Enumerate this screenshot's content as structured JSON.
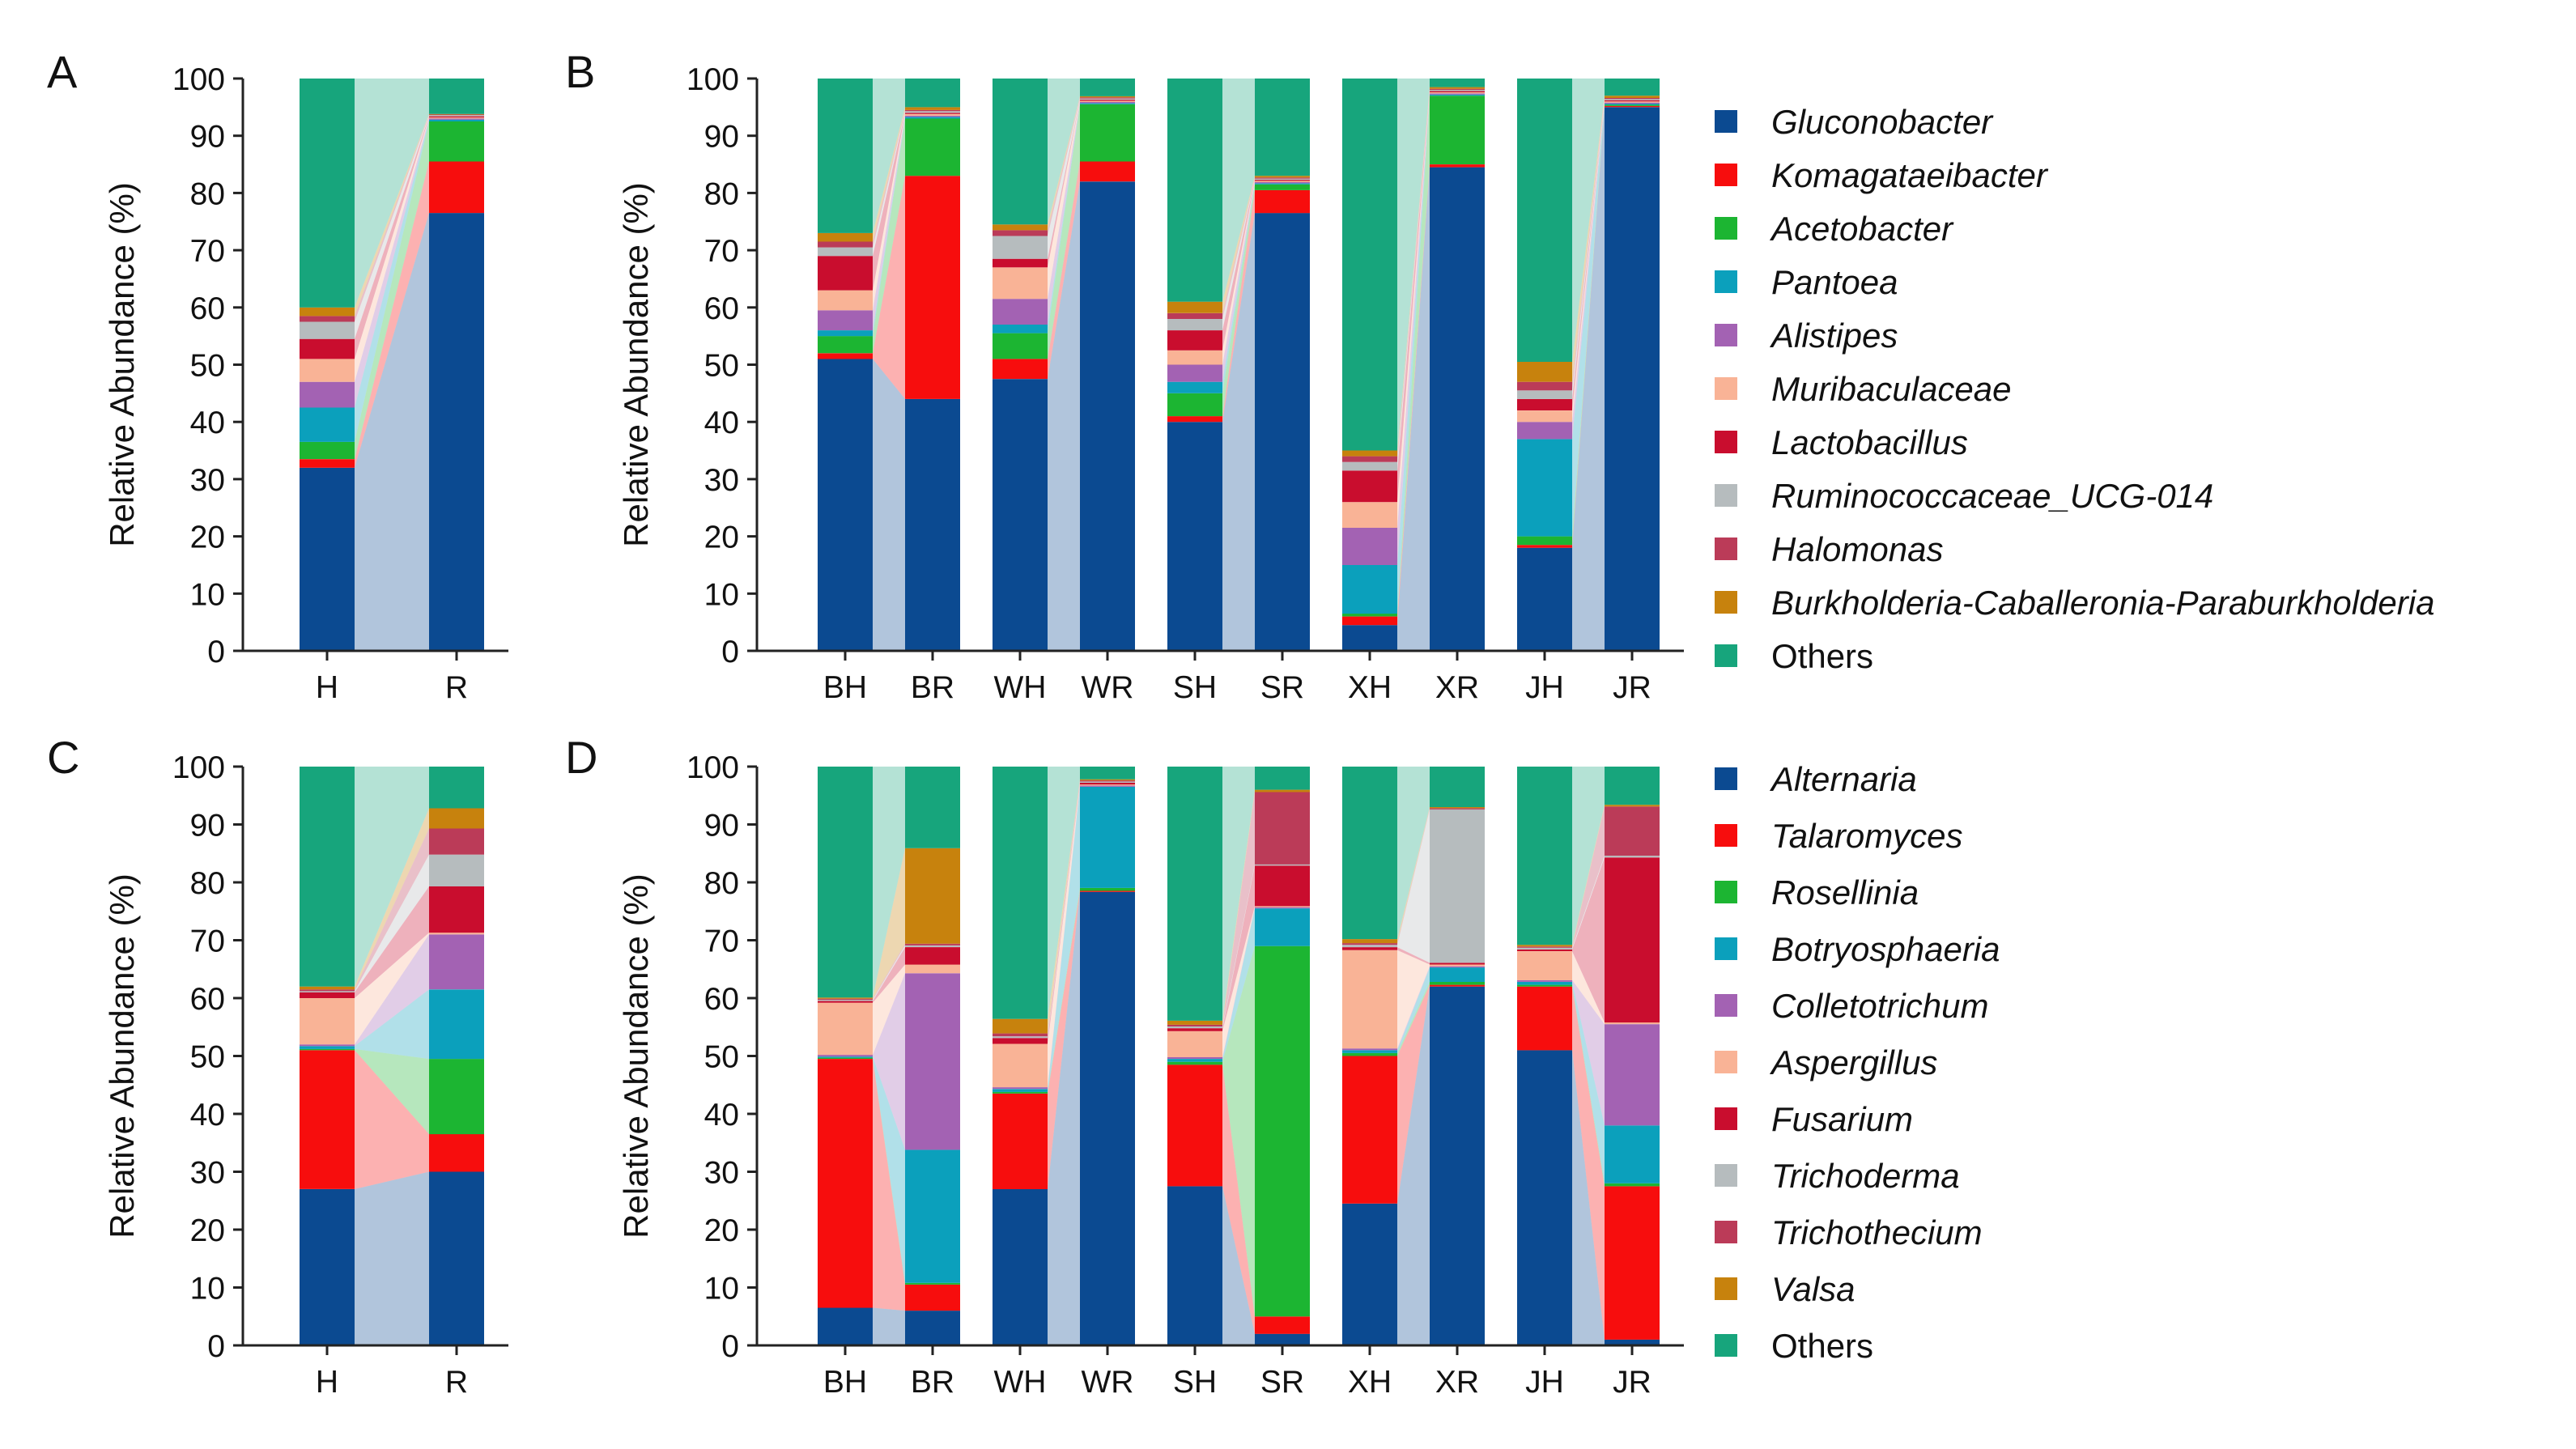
{
  "colors": {
    "navy": "#0b4a91",
    "red": "#f70d0d",
    "green": "#1cb532",
    "teal": "#0ba0bc",
    "purple": "#a362b3",
    "peach": "#f9b396",
    "crimson": "#c90d2e",
    "gray": "#b6bcbe",
    "rose": "#bb3b58",
    "ochre": "#c7820d",
    "sea": "#17a57c"
  },
  "axis_label": "Relative Abundance (%)",
  "y_ticks": [
    "0",
    "10",
    "20",
    "30",
    "40",
    "50",
    "60",
    "70",
    "80",
    "90",
    "100"
  ],
  "legends": [
    {
      "entries": [
        {
          "label": "Gluconobacter",
          "color": "#0b4a91",
          "italic": true
        },
        {
          "label": "Komagataeibacter",
          "color": "#f70d0d",
          "italic": true
        },
        {
          "label": "Acetobacter",
          "color": "#1cb532",
          "italic": true
        },
        {
          "label": "Pantoea",
          "color": "#0ba0bc",
          "italic": true
        },
        {
          "label": "Alistipes",
          "color": "#a362b3",
          "italic": true
        },
        {
          "label": "Muribaculaceae",
          "color": "#f9b396",
          "italic": true
        },
        {
          "label": "Lactobacillus",
          "color": "#c90d2e",
          "italic": true
        },
        {
          "label": "Ruminococcaceae_UCG-014",
          "color": "#b6bcbe",
          "italic": true
        },
        {
          "label": "Halomonas",
          "color": "#bb3b58",
          "italic": true
        },
        {
          "label": "Burkholderia-Caballeronia-Paraburkholderia",
          "color": "#c7820d",
          "italic": true
        },
        {
          "label": "Others",
          "color": "#17a57c",
          "italic": false
        }
      ]
    },
    {
      "entries": [
        {
          "label": "Alternaria",
          "color": "#0b4a91",
          "italic": true
        },
        {
          "label": "Talaromyces",
          "color": "#f70d0d",
          "italic": true
        },
        {
          "label": "Rosellinia",
          "color": "#1cb532",
          "italic": true
        },
        {
          "label": "Botryosphaeria",
          "color": "#0ba0bc",
          "italic": true
        },
        {
          "label": "Colletotrichum",
          "color": "#a362b3",
          "italic": true
        },
        {
          "label": "Aspergillus",
          "color": "#f9b396",
          "italic": true
        },
        {
          "label": "Fusarium",
          "color": "#c90d2e",
          "italic": true
        },
        {
          "label": "Trichoderma",
          "color": "#b6bcbe",
          "italic": true
        },
        {
          "label": "Trichothecium",
          "color": "#bb3b58",
          "italic": true
        },
        {
          "label": "Valsa",
          "color": "#c7820d",
          "italic": true
        },
        {
          "label": "Others",
          "color": "#17a57c",
          "italic": false
        }
      ]
    }
  ],
  "chart_data": [
    {
      "panel": "A",
      "type": "stacked-bar",
      "ylabel": "Relative Abundance (%)",
      "ylim": [
        0,
        100
      ],
      "categories": [
        "H",
        "R"
      ],
      "series": [
        "Gluconobacter",
        "Komagataeibacter",
        "Acetobacter",
        "Pantoea",
        "Alistipes",
        "Muribaculaceae",
        "Lactobacillus",
        "Ruminococcaceae_UCG-014",
        "Halomonas",
        "Burkholderia-Caballeronia-Paraburkholderia",
        "Others"
      ],
      "values": [
        [
          32,
          1.5,
          3,
          6,
          4.5,
          4,
          3.5,
          3,
          1,
          1.5,
          40
        ],
        [
          76.5,
          9,
          7,
          0.3,
          0.2,
          0.2,
          0.2,
          0.2,
          0.1,
          0.1,
          6.2
        ]
      ]
    },
    {
      "panel": "B",
      "type": "stacked-bar",
      "ylabel": "Relative Abundance (%)",
      "ylim": [
        0,
        100
      ],
      "categories": [
        "BH",
        "BR",
        "WH",
        "WR",
        "SH",
        "SR",
        "XH",
        "XR",
        "JH",
        "JR"
      ],
      "series": [
        "Gluconobacter",
        "Komagataeibacter",
        "Acetobacter",
        "Pantoea",
        "Alistipes",
        "Muribaculaceae",
        "Lactobacillus",
        "Ruminococcaceae_UCG-014",
        "Halomonas",
        "Burkholderia-Caballeronia-Paraburkholderia",
        "Others"
      ],
      "values": [
        [
          51,
          1,
          3,
          1,
          3.5,
          3.5,
          6,
          1.5,
          1,
          1.5,
          27
        ],
        [
          44,
          39,
          10,
          0.3,
          0.2,
          0.3,
          0.2,
          0.3,
          0.2,
          0.5,
          5
        ],
        [
          47.5,
          3.5,
          4.5,
          1.5,
          4.5,
          5.5,
          1.5,
          4,
          1,
          1,
          25.5
        ],
        [
          82,
          3.5,
          10,
          0.2,
          0.2,
          0.2,
          0.2,
          0.2,
          0.2,
          0.2,
          3.1
        ],
        [
          40,
          1,
          4,
          2,
          3,
          2.5,
          3.5,
          2,
          1,
          2,
          39
        ],
        [
          76.5,
          4,
          1,
          0.2,
          0.2,
          0.2,
          0.2,
          0.2,
          0.2,
          0.3,
          17
        ],
        [
          4.5,
          1.5,
          0.5,
          8.5,
          6.5,
          4.5,
          5.5,
          1.5,
          1,
          1,
          65
        ],
        [
          84.5,
          0.5,
          12,
          0.2,
          0.2,
          0.2,
          0.2,
          0.2,
          0.2,
          0.3,
          1.5
        ],
        [
          18,
          0.5,
          1.5,
          17,
          3,
          2,
          2,
          1.5,
          1.5,
          3.5,
          49.5
        ],
        [
          95,
          0.2,
          0.2,
          0.2,
          0.2,
          0.2,
          0.2,
          0.2,
          0.2,
          0.4,
          3
        ]
      ]
    },
    {
      "panel": "C",
      "type": "stacked-bar",
      "ylabel": "Relative Abundance (%)",
      "ylim": [
        0,
        100
      ],
      "categories": [
        "H",
        "R"
      ],
      "series": [
        "Alternaria",
        "Talaromyces",
        "Rosellinia",
        "Botryosphaeria",
        "Colletotrichum",
        "Aspergillus",
        "Fusarium",
        "Trichoderma",
        "Trichothecium",
        "Valsa",
        "Others"
      ],
      "values": [
        [
          27,
          24,
          0.2,
          0.5,
          0.3,
          8,
          1,
          0.2,
          0.3,
          0.5,
          38
        ],
        [
          30,
          6.5,
          13,
          12,
          9.5,
          0.3,
          8,
          5.5,
          4.5,
          3.5,
          7.2
        ]
      ]
    },
    {
      "panel": "D",
      "type": "stacked-bar",
      "ylabel": "Relative Abundance (%)",
      "ylim": [
        0,
        100
      ],
      "categories": [
        "BH",
        "BR",
        "WH",
        "WR",
        "SH",
        "SR",
        "XH",
        "XR",
        "JH",
        "JR"
      ],
      "series": [
        "Alternaria",
        "Talaromyces",
        "Rosellinia",
        "Botryosphaeria",
        "Colletotrichum",
        "Aspergillus",
        "Fusarium",
        "Trichoderma",
        "Trichothecium",
        "Valsa",
        "Others"
      ],
      "values": [
        [
          6.5,
          43,
          0.2,
          0.2,
          0.3,
          9,
          0.3,
          0.2,
          0.2,
          0.2,
          39.9
        ],
        [
          6,
          4.5,
          0.3,
          23,
          30.5,
          1.5,
          3,
          0.3,
          0.3,
          16.5,
          14.1
        ],
        [
          27,
          16.5,
          0.3,
          0.5,
          0.3,
          7.5,
          1,
          0.3,
          0.5,
          2.5,
          43.6
        ],
        [
          78.5,
          0.2,
          0.5,
          17.5,
          0.2,
          0.2,
          0.3,
          0.2,
          0.2,
          0.2,
          2.2
        ],
        [
          27.5,
          21,
          0.5,
          0.5,
          0.3,
          4.5,
          0.5,
          0.3,
          0.3,
          0.7,
          43.9
        ],
        [
          2,
          3,
          64,
          6.5,
          0.2,
          0.2,
          7,
          0.2,
          12.5,
          0.4,
          4
        ],
        [
          24.5,
          25.5,
          0.5,
          0.5,
          0.3,
          17,
          0.5,
          0.4,
          0.3,
          0.7,
          29.8
        ],
        [
          62,
          0.3,
          0.5,
          2.5,
          0.2,
          0.3,
          0.3,
          26.5,
          0.2,
          0.2,
          7
        ],
        [
          51,
          11,
          0.3,
          0.5,
          0.3,
          5,
          0.3,
          0.3,
          0.2,
          0.3,
          30.8
        ],
        [
          1,
          26.5,
          0.5,
          10,
          17.5,
          0.3,
          28.5,
          0.3,
          8.5,
          0.3,
          6.6
        ]
      ]
    }
  ]
}
